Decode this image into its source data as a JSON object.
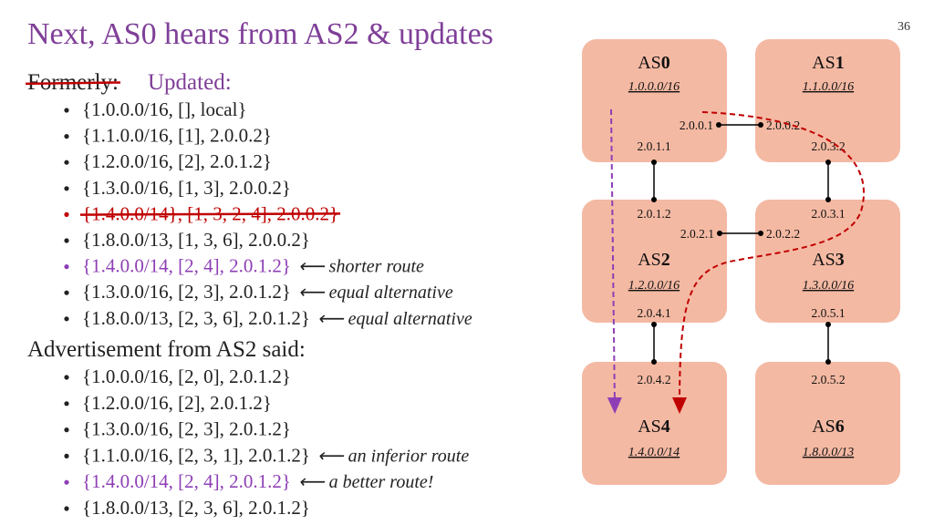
{
  "title": "Next, AS0 hears from AS2 & updates",
  "page_number": "36",
  "formerly": "Formerly:",
  "updated": "Updated:",
  "updated_list": [
    {
      "text": "{1.0.0.0/16, [], local}",
      "style": "normal"
    },
    {
      "text": "{1.1.0.0/16, [1], 2.0.0.2}",
      "style": "normal"
    },
    {
      "text": "{1.2.0.0/16, [2], 2.0.1.2}",
      "style": "normal"
    },
    {
      "text": "{1.3.0.0/16, [1, 3], 2.0.0.2}",
      "style": "normal"
    },
    {
      "text": "{1.4.0.0/14}, [1, 3, 2, 4], 2.0.0.2}",
      "style": "struck"
    },
    {
      "text": "{1.8.0.0/13, [1, 3, 6], 2.0.0.2}",
      "style": "normal"
    },
    {
      "text": "{1.4.0.0/14, [2, 4], 2.0.1.2}",
      "style": "highlight",
      "note": "⟵ shorter route"
    },
    {
      "text": "{1.3.0.0/16, [2, 3], 2.0.1.2}",
      "style": "normal",
      "note": "⟵ equal alternative"
    },
    {
      "text": "{1.8.0.0/13, [2, 3, 6], 2.0.1.2}",
      "style": "normal",
      "note": "⟵ equal alternative"
    }
  ],
  "advertisement_heading": "Advertisement from AS2 said:",
  "advertisement_list": [
    {
      "text": "{1.0.0.0/16, [2, 0], 2.0.1.2}",
      "style": "normal"
    },
    {
      "text": "{1.2.0.0/16, [2], 2.0.1.2}",
      "style": "normal"
    },
    {
      "text": "{1.3.0.0/16, [2, 3], 2.0.1.2}",
      "style": "normal"
    },
    {
      "text": "{1.1.0.0/16, [2, 3, 1], 2.0.1.2}",
      "style": "normal",
      "note": "⟵ an inferior route"
    },
    {
      "text": "{1.4.0.0/14, [2, 4], 2.0.1.2}",
      "style": "highlight",
      "note": "⟵ a better route!"
    },
    {
      "text": "{1.8.0.0/13, [2, 3, 6], 2.0.1.2}",
      "style": "normal"
    }
  ],
  "nodes": [
    {
      "prefix": "AS",
      "number": "0",
      "network": "1.0.0.0/16"
    },
    {
      "prefix": "AS",
      "number": "1",
      "network": "1.1.0.0/16"
    },
    {
      "prefix": "AS",
      "number": "2",
      "network": "1.2.0.0/16"
    },
    {
      "prefix": "AS",
      "number": "3",
      "network": "1.3.0.0/16"
    },
    {
      "prefix": "AS",
      "number": "4",
      "network": "1.4.0.0/14"
    },
    {
      "prefix": "AS",
      "number": "6",
      "network": "1.8.0.0/13"
    }
  ],
  "interfaces": [
    "2.0.0.1",
    "2.0.1.1",
    "2.0.0.2",
    "2.0.3.2",
    "2.0.1.2",
    "2.0.2.1",
    "2.0.4.1",
    "2.0.3.1",
    "2.0.2.2",
    "2.0.5.1",
    "2.0.4.2",
    "2.0.5.2"
  ]
}
